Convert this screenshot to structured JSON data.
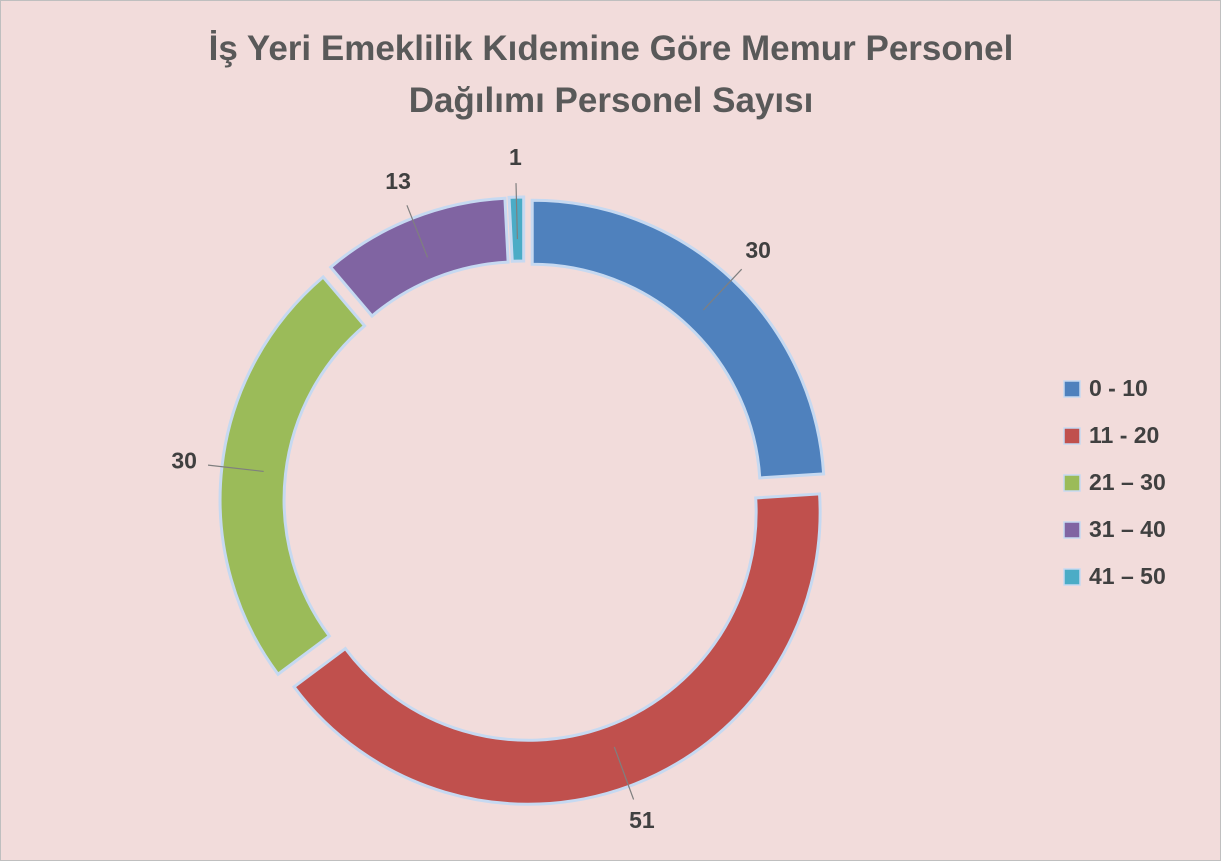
{
  "chart_data": {
    "type": "donut",
    "title": "İş Yeri Emeklilik Kıdemine Göre Memur Personel Dağılımı Personel Sayısı",
    "categories": [
      "0 - 10",
      "11 - 20",
      "21 – 30",
      "31 – 40",
      "41 – 50"
    ],
    "values": [
      30,
      51,
      30,
      13,
      1
    ],
    "colors": [
      "#4f81bd",
      "#c0504d",
      "#9bbb59",
      "#8064a2",
      "#4bacc6"
    ],
    "legend": "right"
  }
}
